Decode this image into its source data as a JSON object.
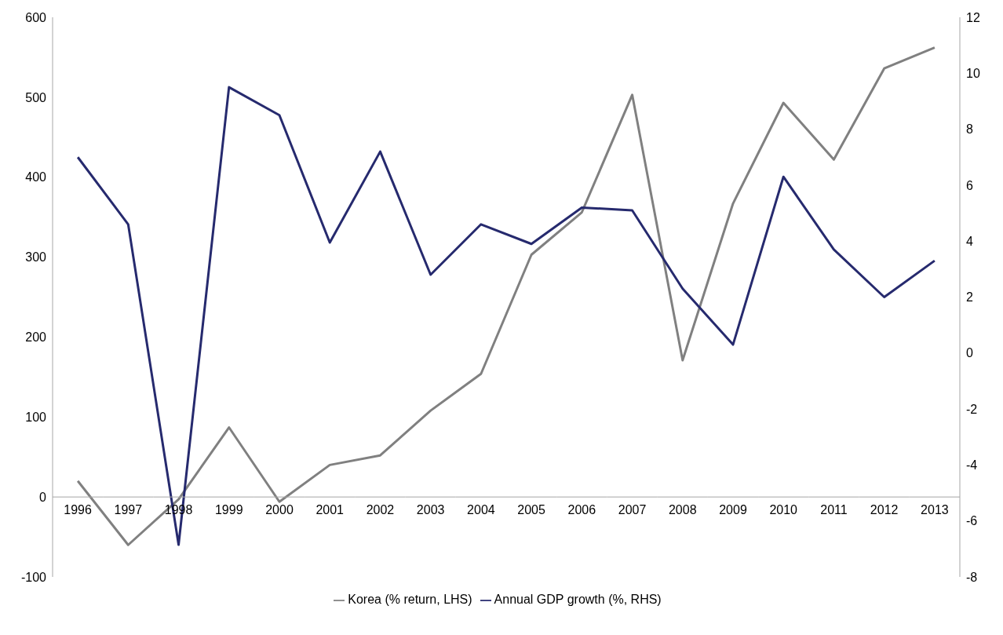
{
  "chart_data": {
    "type": "line",
    "categories": [
      "1996",
      "1997",
      "1998",
      "1999",
      "2000",
      "2001",
      "2002",
      "2003",
      "2004",
      "2005",
      "2006",
      "2007",
      "2008",
      "2009",
      "2010",
      "2011",
      "2012",
      "2013"
    ],
    "series": [
      {
        "name": "Korea (% return, LHS)",
        "color": "#808080",
        "values": [
          20,
          -60,
          -3,
          87,
          -6,
          40,
          52,
          108,
          154,
          303,
          356,
          503,
          171,
          367,
          493,
          422,
          536,
          562
        ]
      },
      {
        "name": "Annual GDP growth (%, RHS)",
        "color": "#262a6e",
        "axis": "y2",
        "values": [
          7.0,
          4.6,
          -6.85,
          9.5,
          8.5,
          3.95,
          7.2,
          2.8,
          4.6,
          3.9,
          5.2,
          5.1,
          2.3,
          0.3,
          6.3,
          3.7,
          2.0,
          3.3
        ]
      }
    ],
    "ylim": [
      -100,
      600
    ],
    "yticks": [
      -100,
      0,
      100,
      200,
      300,
      400,
      500,
      600
    ],
    "y2lim": [
      -8,
      12
    ],
    "y2ticks": [
      -8,
      -6,
      -4,
      -2,
      0,
      2,
      4,
      6,
      8,
      10,
      12
    ],
    "legend": "bottom",
    "marker": "none",
    "line_style": "solid"
  }
}
